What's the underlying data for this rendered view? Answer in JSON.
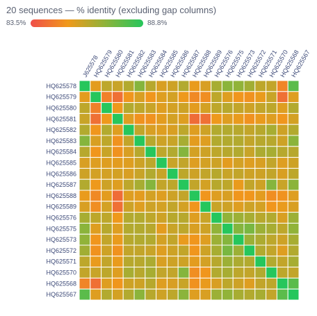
{
  "chart_data": {
    "type": "heatmap",
    "title": "20 sequences — % identity (excluding gap columns)",
    "color_scale": {
      "min_label": "83.5%",
      "max_label": "88.8%",
      "min": 83.5,
      "max": 88.8,
      "colors": [
        "#ef4e4a",
        "#f0991b",
        "#8fb33a",
        "#26c65c"
      ]
    },
    "x_labels": [
      "J625578",
      "HQ625579",
      "HQ625580",
      "HQ625581",
      "HQ625582",
      "HQ625583",
      "HQ625584",
      "HQ625585",
      "HQ625586",
      "HQ625587",
      "HQ625588",
      "HQ625589",
      "HQ625576",
      "HQ625575",
      "HQ625573",
      "HQ625572",
      "HQ625571",
      "HQ625570",
      "HQ625568",
      "HQ625567"
    ],
    "y_labels": [
      "HQ625578",
      "HQ625579",
      "HQ625580",
      "HQ625581",
      "HQ625582",
      "HQ625583",
      "HQ625584",
      "HQ625585",
      "HQ625586",
      "HQ625587",
      "HQ625588",
      "HQ625589",
      "HQ625576",
      "HQ625575",
      "HQ625573",
      "HQ625572",
      "HQ625571",
      "HQ625570",
      "HQ625568",
      "HQ625567"
    ],
    "values": [
      [
        88.8,
        85.5,
        86.2,
        86.0,
        86.4,
        87.2,
        86.3,
        85.7,
        85.9,
        86.4,
        85.4,
        85.7,
        86.6,
        87.1,
        87.0,
        86.7,
        86.2,
        86.1,
        84.8,
        87.9
      ],
      [
        85.5,
        88.8,
        84.7,
        84.3,
        85.2,
        85.7,
        85.2,
        85.6,
        85.8,
        85.3,
        84.9,
        85.0,
        86.2,
        85.6,
        85.2,
        85.1,
        85.4,
        86.0,
        84.3,
        85.6
      ],
      [
        86.2,
        84.7,
        88.8,
        85.3,
        86.4,
        86.2,
        86.0,
        85.6,
        85.8,
        85.9,
        85.5,
        85.8,
        86.2,
        86.3,
        86.1,
        85.9,
        86.1,
        86.2,
        85.6,
        86.4
      ],
      [
        86.0,
        84.3,
        85.3,
        88.8,
        85.6,
        85.1,
        85.1,
        85.5,
        85.8,
        85.6,
        84.2,
        84.3,
        85.3,
        85.6,
        85.4,
        85.1,
        85.4,
        85.6,
        85.2,
        85.8
      ],
      [
        86.4,
        85.2,
        86.4,
        85.6,
        88.8,
        86.1,
        85.7,
        85.6,
        85.7,
        86.2,
        85.6,
        85.9,
        86.4,
        86.4,
        86.3,
        86.1,
        86.3,
        86.6,
        85.9,
        86.4
      ],
      [
        87.2,
        85.7,
        86.2,
        85.1,
        86.1,
        88.8,
        86.3,
        85.9,
        86.0,
        86.6,
        85.5,
        85.6,
        86.4,
        86.4,
        86.4,
        86.1,
        86.3,
        86.3,
        85.9,
        87.1
      ],
      [
        86.3,
        85.2,
        86.0,
        85.1,
        85.7,
        86.3,
        88.8,
        86.2,
        86.4,
        87.2,
        85.8,
        85.9,
        86.2,
        86.3,
        86.4,
        86.0,
        86.5,
        86.6,
        86.3,
        86.3
      ],
      [
        85.7,
        85.6,
        85.6,
        85.5,
        85.6,
        85.9,
        86.2,
        88.8,
        86.0,
        86.1,
        85.6,
        85.8,
        85.9,
        85.5,
        85.8,
        85.6,
        85.7,
        86.1,
        85.6,
        85.9
      ],
      [
        85.9,
        85.8,
        85.8,
        85.8,
        85.7,
        86.0,
        86.4,
        86.0,
        88.8,
        86.2,
        85.9,
        86.1,
        86.3,
        86.0,
        86.1,
        85.9,
        85.9,
        86.1,
        85.7,
        86.2
      ],
      [
        86.4,
        85.3,
        85.9,
        85.6,
        86.2,
        86.6,
        87.2,
        86.1,
        86.2,
        88.8,
        86.1,
        85.8,
        86.3,
        86.2,
        85.4,
        86.1,
        85.9,
        87.2,
        86.0,
        87.1
      ],
      [
        85.4,
        84.9,
        85.5,
        84.2,
        85.6,
        85.5,
        85.8,
        85.6,
        85.9,
        86.1,
        88.8,
        85.2,
        85.6,
        85.7,
        85.2,
        85.2,
        85.5,
        85.0,
        85.1,
        85.6
      ],
      [
        85.7,
        85.0,
        85.8,
        84.3,
        85.9,
        85.6,
        85.9,
        85.8,
        86.1,
        85.8,
        85.2,
        88.8,
        86.0,
        85.9,
        85.6,
        85.9,
        85.8,
        85.2,
        85.4,
        85.7
      ],
      [
        86.6,
        86.2,
        86.2,
        85.3,
        86.4,
        86.4,
        86.2,
        85.9,
        86.3,
        86.3,
        85.6,
        86.0,
        88.8,
        87.0,
        86.8,
        86.6,
        86.3,
        86.4,
        85.7,
        86.8
      ],
      [
        87.1,
        85.6,
        86.3,
        85.6,
        86.4,
        86.4,
        86.3,
        85.5,
        86.0,
        86.2,
        85.7,
        85.9,
        87.0,
        88.8,
        87.2,
        87.4,
        86.8,
        86.6,
        86.2,
        87.0
      ],
      [
        87.0,
        85.2,
        86.1,
        85.4,
        86.3,
        86.4,
        86.4,
        85.8,
        86.1,
        85.4,
        85.2,
        85.6,
        86.8,
        87.2,
        88.8,
        86.8,
        86.5,
        86.2,
        85.9,
        86.6
      ],
      [
        86.7,
        85.1,
        85.9,
        85.1,
        86.1,
        86.1,
        86.0,
        85.6,
        85.9,
        86.1,
        85.2,
        85.9,
        86.6,
        87.4,
        86.8,
        88.8,
        86.4,
        86.1,
        85.6,
        86.4
      ],
      [
        86.2,
        85.4,
        86.1,
        85.4,
        86.3,
        86.3,
        86.5,
        85.7,
        85.9,
        85.9,
        85.5,
        85.8,
        86.3,
        86.8,
        86.5,
        86.4,
        88.8,
        86.4,
        86.1,
        86.6
      ],
      [
        86.1,
        86.0,
        86.2,
        85.6,
        86.6,
        86.3,
        86.6,
        86.1,
        86.1,
        87.2,
        85.0,
        85.2,
        86.4,
        86.6,
        86.2,
        86.1,
        86.4,
        88.8,
        86.2,
        86.1
      ],
      [
        84.8,
        84.3,
        85.6,
        85.2,
        85.9,
        85.9,
        86.3,
        85.6,
        85.7,
        86.0,
        85.1,
        85.4,
        85.7,
        86.2,
        85.9,
        85.6,
        86.1,
        86.2,
        88.8,
        87.9
      ],
      [
        87.9,
        85.6,
        86.4,
        85.8,
        86.4,
        87.1,
        86.3,
        85.9,
        86.2,
        87.1,
        85.6,
        85.7,
        86.8,
        87.0,
        86.6,
        86.4,
        86.6,
        86.1,
        87.9,
        88.8
      ]
    ]
  }
}
